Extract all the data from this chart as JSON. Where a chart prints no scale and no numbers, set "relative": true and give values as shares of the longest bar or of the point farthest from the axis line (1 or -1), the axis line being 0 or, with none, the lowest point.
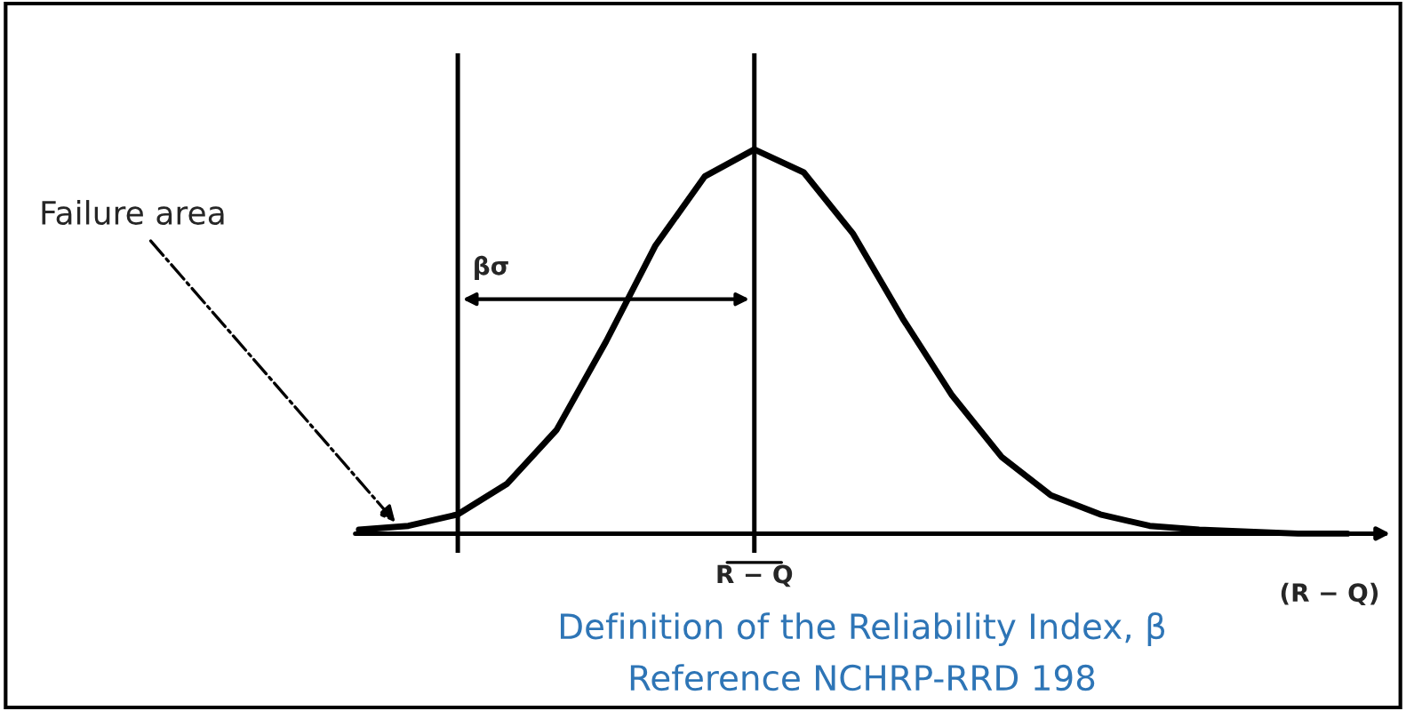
{
  "chart_data": {
    "type": "line",
    "relative": true,
    "categories": [
      null,
      null,
      null,
      null,
      null,
      null,
      null,
      null,
      null,
      null,
      null,
      null,
      null,
      null,
      null,
      null,
      null,
      null,
      null,
      null,
      null
    ],
    "series": [
      {
        "color": "#000000",
        "values": [
          0.01,
          0.02,
          0.05,
          0.13,
          0.27,
          0.5,
          0.75,
          0.93,
          1.0,
          0.94,
          0.78,
          0.56,
          0.36,
          0.2,
          0.1,
          0.05,
          0.02,
          0.01,
          0.005,
          0,
          0
        ]
      }
    ],
    "xlabel": "(R − Q)",
    "annotations": [
      "R − Q",
      "βσ",
      "Failure area",
      "Definition of the Reliability Index, β",
      "Reference NCHRP-RRD 198"
    ],
    "legend": false,
    "marker": "none",
    "line_style": "solid"
  }
}
